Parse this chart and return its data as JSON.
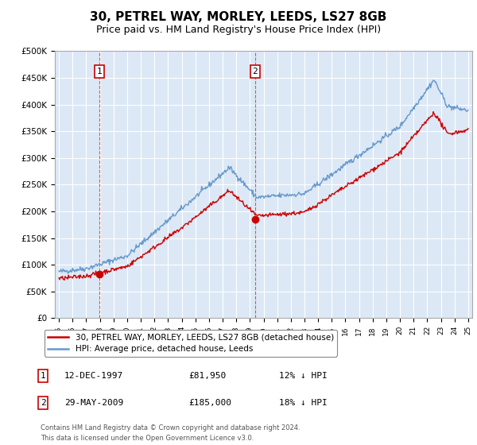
{
  "title": "30, PETREL WAY, MORLEY, LEEDS, LS27 8GB",
  "subtitle": "Price paid vs. HM Land Registry's House Price Index (HPI)",
  "title_fontsize": 11,
  "subtitle_fontsize": 9,
  "background_color": "#ffffff",
  "plot_bg_color": "#dce8f5",
  "grid_color": "#ffffff",
  "hpi_line_color": "#6699cc",
  "price_line_color": "#cc0000",
  "ylim": [
    0,
    500000
  ],
  "yticks": [
    0,
    50000,
    100000,
    150000,
    200000,
    250000,
    300000,
    350000,
    400000,
    450000,
    500000
  ],
  "ytick_labels": [
    "£0",
    "£50K",
    "£100K",
    "£150K",
    "£200K",
    "£250K",
    "£300K",
    "£350K",
    "£400K",
    "£450K",
    "£500K"
  ],
  "x_start_year": 1995,
  "x_end_year": 2025,
  "sale1_price": 81950,
  "sale1_x": 1997.95,
  "sale1_label": "1",
  "sale2_price": 185000,
  "sale2_x": 2009.38,
  "sale2_label": "2",
  "legend_line1": "30, PETREL WAY, MORLEY, LEEDS, LS27 8GB (detached house)",
  "legend_line2": "HPI: Average price, detached house, Leeds",
  "footer1": "Contains HM Land Registry data © Crown copyright and database right 2024.",
  "footer2": "This data is licensed under the Open Government Licence v3.0.",
  "table_row1": [
    "1",
    "12-DEC-1997",
    "£81,950",
    "12% ↓ HPI"
  ],
  "table_row2": [
    "2",
    "29-MAY-2009",
    "£185,000",
    "18% ↓ HPI"
  ]
}
